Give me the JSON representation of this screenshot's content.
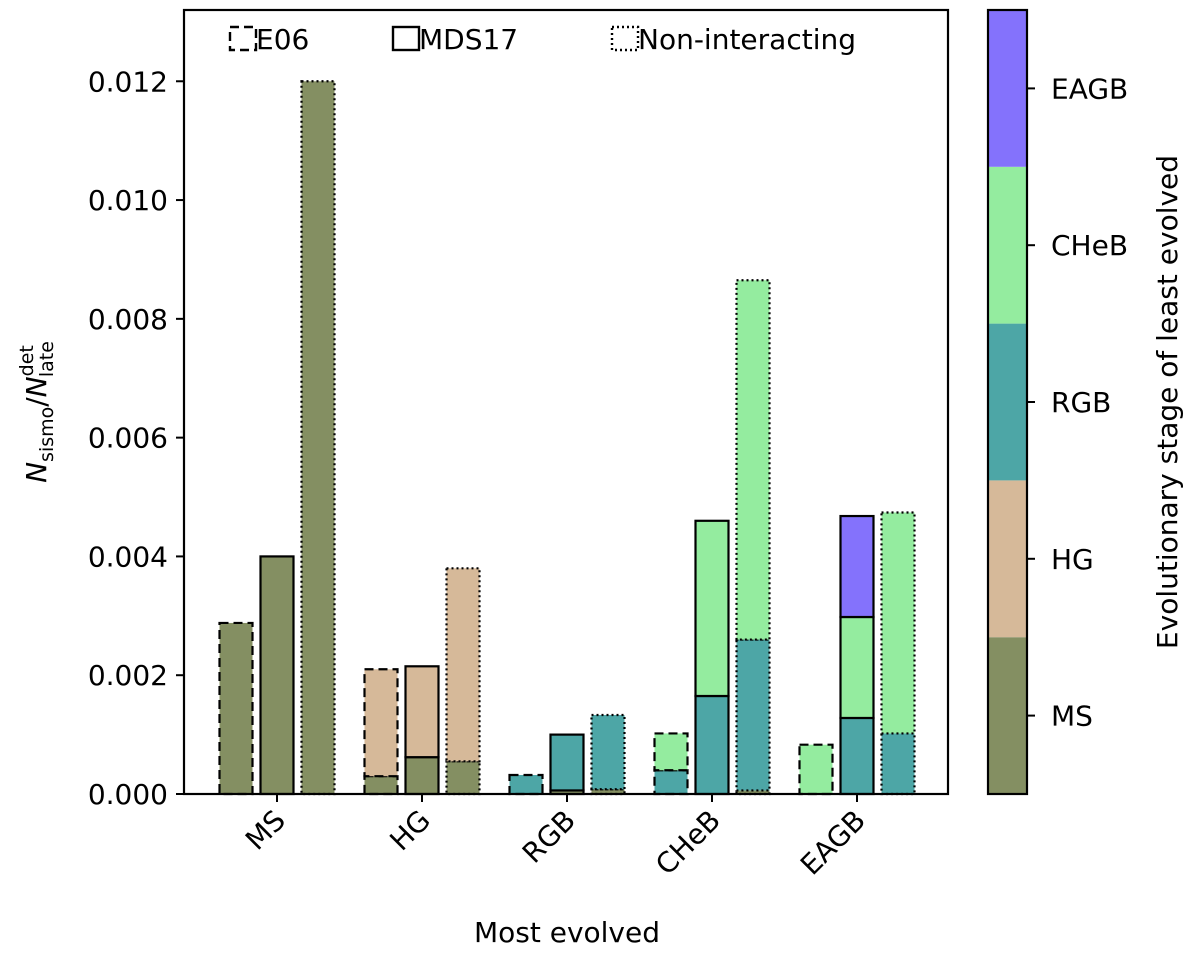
{
  "chart_data": {
    "type": "bar",
    "subtype": "stacked-grouped",
    "categories": [
      "MS",
      "HG",
      "RGB",
      "CHeB",
      "EAGB"
    ],
    "xlabel": "Most evolved",
    "ylabel": {
      "main": "N",
      "num_sub": "sismo",
      "slash": "/",
      "den_main": "N",
      "den_sub": "late",
      "den_sup": "det"
    },
    "ylim": [
      0,
      0.0132
    ],
    "yticks": [
      0,
      0.002,
      0.004,
      0.006,
      0.008,
      0.01,
      0.012
    ],
    "ytick_labels": [
      "0.000",
      "0.002",
      "0.004",
      "0.006",
      "0.008",
      "0.010",
      "0.012"
    ],
    "grid": false,
    "legend": {
      "placement": "top",
      "entries": [
        {
          "label": "E06",
          "style": "dashed"
        },
        {
          "label": "MDS17",
          "style": "solid"
        },
        {
          "label": "Non-interacting",
          "style": "dotted"
        }
      ]
    },
    "colorbar": {
      "label": "Evolutionary stage of least evolved",
      "stages": [
        "MS",
        "HG",
        "RGB",
        "CHeB",
        "EAGB"
      ],
      "colors": {
        "MS": "#848f62",
        "HG": "#d6b999",
        "RGB": "#4da6a6",
        "CHeB": "#94ec9f",
        "EAGB": "#8472fc"
      }
    },
    "series": [
      {
        "name": "E06",
        "style": "dashed",
        "stacks": [
          [
            {
              "stage": "MS",
              "value": 0.00288
            }
          ],
          [
            {
              "stage": "MS",
              "value": 0.0003
            },
            {
              "stage": "HG",
              "value": 0.0018
            }
          ],
          [
            {
              "stage": "RGB",
              "value": 0.00032
            }
          ],
          [
            {
              "stage": "RGB",
              "value": 0.0004
            },
            {
              "stage": "CHeB",
              "value": 0.00062
            }
          ],
          [
            {
              "stage": "CHeB",
              "value": 0.00083
            }
          ]
        ]
      },
      {
        "name": "MDS17",
        "style": "solid",
        "stacks": [
          [
            {
              "stage": "MS",
              "value": 0.004
            }
          ],
          [
            {
              "stage": "MS",
              "value": 0.00062
            },
            {
              "stage": "HG",
              "value": 0.00153
            }
          ],
          [
            {
              "stage": "MS",
              "value": 6e-05
            },
            {
              "stage": "RGB",
              "value": 0.00094
            }
          ],
          [
            {
              "stage": "RGB",
              "value": 0.00165
            },
            {
              "stage": "CHeB",
              "value": 0.00295
            }
          ],
          [
            {
              "stage": "RGB",
              "value": 0.00128
            },
            {
              "stage": "CHeB",
              "value": 0.0017
            },
            {
              "stage": "EAGB",
              "value": 0.0017
            }
          ]
        ]
      },
      {
        "name": "Non-interacting",
        "style": "dotted",
        "stacks": [
          [
            {
              "stage": "MS",
              "value": 0.012
            }
          ],
          [
            {
              "stage": "MS",
              "value": 0.00055
            },
            {
              "stage": "HG",
              "value": 0.00325
            }
          ],
          [
            {
              "stage": "MS",
              "value": 8e-05
            },
            {
              "stage": "RGB",
              "value": 0.00125
            }
          ],
          [
            {
              "stage": "MS",
              "value": 6e-05
            },
            {
              "stage": "RGB",
              "value": 0.00254
            },
            {
              "stage": "CHeB",
              "value": 0.00605
            }
          ],
          [
            {
              "stage": "RGB",
              "value": 0.00102
            },
            {
              "stage": "CHeB",
              "value": 0.00372
            }
          ]
        ]
      }
    ]
  }
}
